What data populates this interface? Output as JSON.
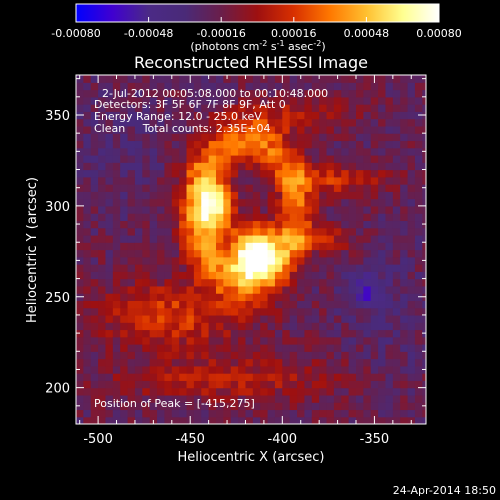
{
  "chart_data": {
    "type": "heatmap",
    "title": "Reconstructed RHESSI Image",
    "xlabel": "Heliocentric X (arcsec)",
    "ylabel": "Heliocentric Y (arcsec)",
    "xlim": [
      -512,
      -322
    ],
    "ylim": [
      180,
      372
    ],
    "x_ticks": [
      -500,
      -450,
      -400,
      -350
    ],
    "y_ticks": [
      200,
      250,
      300,
      350
    ],
    "x_tick_labels": [
      "-500",
      "-450",
      "-400",
      "-350"
    ],
    "y_tick_labels": [
      "200",
      "250",
      "300",
      "350"
    ],
    "colorbar": {
      "range": [
        -0.0008,
        0.0008
      ],
      "ticks": [
        -0.0008,
        -0.00048,
        -0.00016,
        0.00016,
        0.00048,
        0.0008
      ],
      "tick_labels": [
        "-0.00080",
        "-0.00048",
        "-0.00016",
        "0.00016",
        "0.00048",
        "0.00080"
      ],
      "unit_main": "(photons cm",
      "unit_sup1": "-2",
      "unit_mid": " s",
      "unit_sup2": "-1",
      "unit_mid2": " asec",
      "unit_sup3": "-2",
      "unit_end": ")"
    },
    "annotations": {
      "time_range": "2-Jul-2012 00:05:08.000 to 00:10:48.000",
      "detectors": "Detectors: 3F 5F 6F 7F 8F 9F, Att 0",
      "energy_range": "Energy Range: 12.0 - 25.0 keV",
      "clean": "Clean     Total counts: 2.35E+04",
      "peak": "Position of Peak = [-415,275]"
    },
    "peak_position": [
      -415,
      275
    ],
    "grid": false
  },
  "footer": {
    "timestamp": "24-Apr-2014 18:50"
  },
  "colors": {
    "background": "#000000",
    "text": "#ffffff",
    "colormap": [
      "#0000ff",
      "#4000d0",
      "#4b2a86",
      "#4a2a78",
      "#6a1e4a",
      "#9e1010",
      "#d83000",
      "#ff7800",
      "#ffc030",
      "#ffff90",
      "#ffffff"
    ]
  }
}
